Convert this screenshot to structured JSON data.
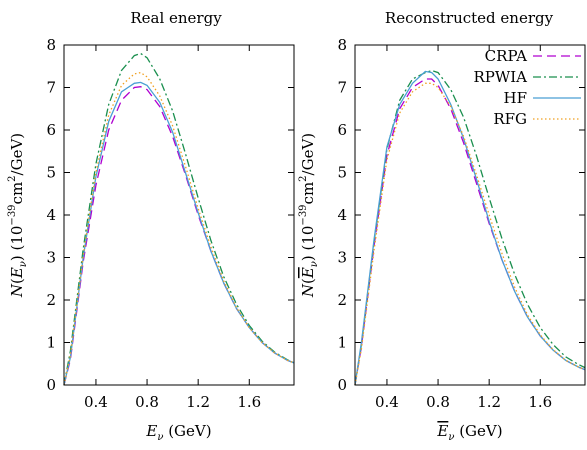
{
  "chart_data": [
    {
      "type": "line",
      "title": "Real energy",
      "xlabel": "E_ν (GeV)",
      "ylabel": "N(E_ν) (10^-39 cm^2/GeV)",
      "xlim": [
        0.15,
        1.95
      ],
      "ylim": [
        0,
        8
      ],
      "xticks": [
        "0.4",
        "0.8",
        "1.2",
        "1.6"
      ],
      "yticks": [
        "0",
        "1",
        "2",
        "3",
        "4",
        "5",
        "6",
        "7",
        "8"
      ],
      "x": [
        0.15,
        0.2,
        0.3,
        0.4,
        0.5,
        0.6,
        0.7,
        0.75,
        0.8,
        0.9,
        1.0,
        1.1,
        1.2,
        1.3,
        1.4,
        1.5,
        1.6,
        1.7,
        1.8,
        1.9,
        1.95
      ],
      "series": [
        {
          "name": "CRPA",
          "color": "#b000d0",
          "dash": "dashed",
          "values": [
            0.0,
            0.6,
            2.9,
            4.7,
            6.0,
            6.7,
            7.0,
            7.02,
            6.95,
            6.55,
            5.85,
            4.95,
            4.0,
            3.15,
            2.4,
            1.8,
            1.35,
            1.0,
            0.75,
            0.58,
            0.52
          ]
        },
        {
          "name": "RPWIA",
          "color": "#1a8f4e",
          "dash": "dashdot",
          "values": [
            0.0,
            0.8,
            3.2,
            5.2,
            6.6,
            7.4,
            7.75,
            7.8,
            7.7,
            7.2,
            6.45,
            5.45,
            4.4,
            3.4,
            2.55,
            1.9,
            1.4,
            1.03,
            0.77,
            0.59,
            0.52
          ]
        },
        {
          "name": "HF",
          "color": "#4a9fd4",
          "dash": "solid",
          "values": [
            0.0,
            0.65,
            3.0,
            4.9,
            6.2,
            6.9,
            7.1,
            7.12,
            7.05,
            6.65,
            5.95,
            5.0,
            4.05,
            3.15,
            2.4,
            1.8,
            1.35,
            1.0,
            0.75,
            0.58,
            0.52
          ]
        },
        {
          "name": "RFG",
          "color": "#f0a020",
          "dash": "dotted",
          "values": [
            0.0,
            0.7,
            3.05,
            5.0,
            6.35,
            7.05,
            7.32,
            7.35,
            7.25,
            6.8,
            6.1,
            5.15,
            4.15,
            3.25,
            2.45,
            1.82,
            1.35,
            1.0,
            0.75,
            0.58,
            0.52
          ]
        }
      ]
    },
    {
      "type": "line",
      "title": "Reconstructed energy",
      "xlabel": "Ē_ν (GeV)",
      "ylabel": "N(Ē_ν) (10^-39 cm^2/GeV)",
      "xlim": [
        0.15,
        1.95
      ],
      "ylim": [
        0,
        8
      ],
      "xticks": [
        "0.4",
        "0.8",
        "1.2",
        "1.6"
      ],
      "yticks": [
        "0",
        "1",
        "2",
        "3",
        "4",
        "5",
        "6",
        "7",
        "8"
      ],
      "legend": "top-right",
      "x": [
        0.15,
        0.2,
        0.3,
        0.4,
        0.5,
        0.6,
        0.7,
        0.75,
        0.8,
        0.9,
        1.0,
        1.1,
        1.2,
        1.3,
        1.4,
        1.5,
        1.6,
        1.7,
        1.8,
        1.9,
        1.95
      ],
      "series": [
        {
          "name": "CRPA",
          "color": "#b000d0",
          "dash": "dashed",
          "values": [
            0.0,
            0.9,
            3.3,
            5.4,
            6.5,
            7.0,
            7.2,
            7.2,
            7.05,
            6.5,
            5.7,
            4.75,
            3.8,
            2.95,
            2.2,
            1.6,
            1.15,
            0.82,
            0.58,
            0.42,
            0.36
          ]
        },
        {
          "name": "RPWIA",
          "color": "#1a8f4e",
          "dash": "dashdot",
          "values": [
            0.0,
            0.95,
            3.4,
            5.55,
            6.7,
            7.2,
            7.35,
            7.4,
            7.35,
            6.95,
            6.3,
            5.4,
            4.4,
            3.45,
            2.6,
            1.9,
            1.35,
            0.95,
            0.66,
            0.48,
            0.41
          ]
        },
        {
          "name": "HF",
          "color": "#4a9fd4",
          "dash": "solid",
          "values": [
            0.0,
            1.0,
            3.45,
            5.6,
            6.6,
            7.1,
            7.38,
            7.35,
            7.2,
            6.6,
            5.8,
            4.85,
            3.85,
            2.95,
            2.2,
            1.6,
            1.15,
            0.82,
            0.58,
            0.42,
            0.36
          ]
        },
        {
          "name": "RFG",
          "color": "#f0a020",
          "dash": "dotted",
          "values": [
            0.0,
            0.85,
            3.2,
            5.3,
            6.4,
            6.9,
            7.1,
            7.1,
            7.0,
            6.55,
            5.85,
            4.95,
            4.0,
            3.1,
            2.3,
            1.65,
            1.18,
            0.83,
            0.58,
            0.42,
            0.36
          ]
        }
      ]
    }
  ]
}
